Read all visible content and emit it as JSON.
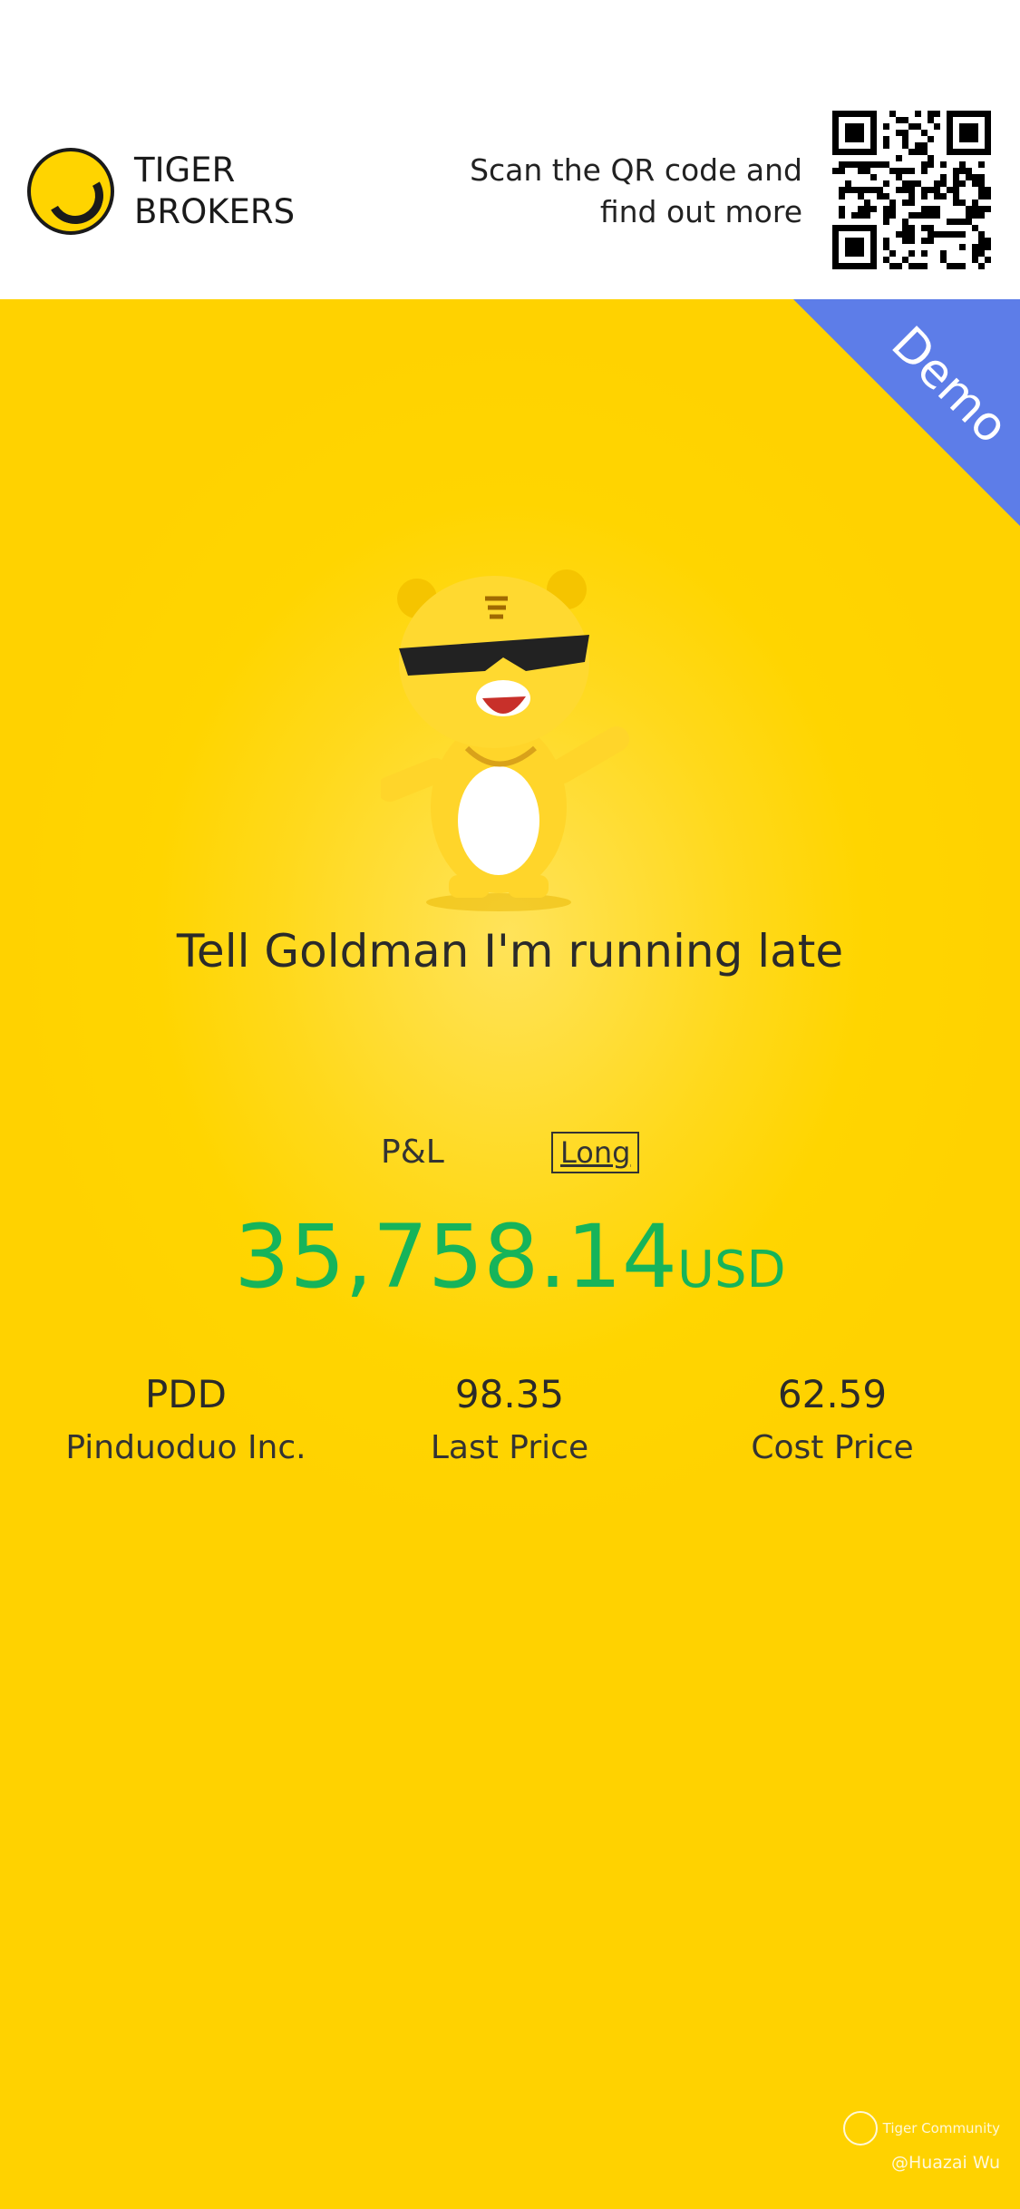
{
  "header": {
    "brand_line1": "TIGER",
    "brand_line2": "BROKERS",
    "scan_text": "Scan the QR code and find out more",
    "qr_icon": "qr-code"
  },
  "badge": {
    "label": "Demo",
    "color": "#5d7de8"
  },
  "main": {
    "title": "Tell Goldman I'm running late",
    "pl_label": "P&L",
    "position_label": "Long",
    "amount": "35,758.14",
    "currency": "USD",
    "amount_color": "#16b45a",
    "stats": [
      {
        "value": "PDD",
        "label": "Pinduoduo Inc."
      },
      {
        "value": "98.35",
        "label": "Last Price"
      },
      {
        "value": "62.59",
        "label": "Cost Price"
      }
    ]
  },
  "watermark": {
    "community": "Tiger Community",
    "handle": "@Huazai Wu"
  }
}
